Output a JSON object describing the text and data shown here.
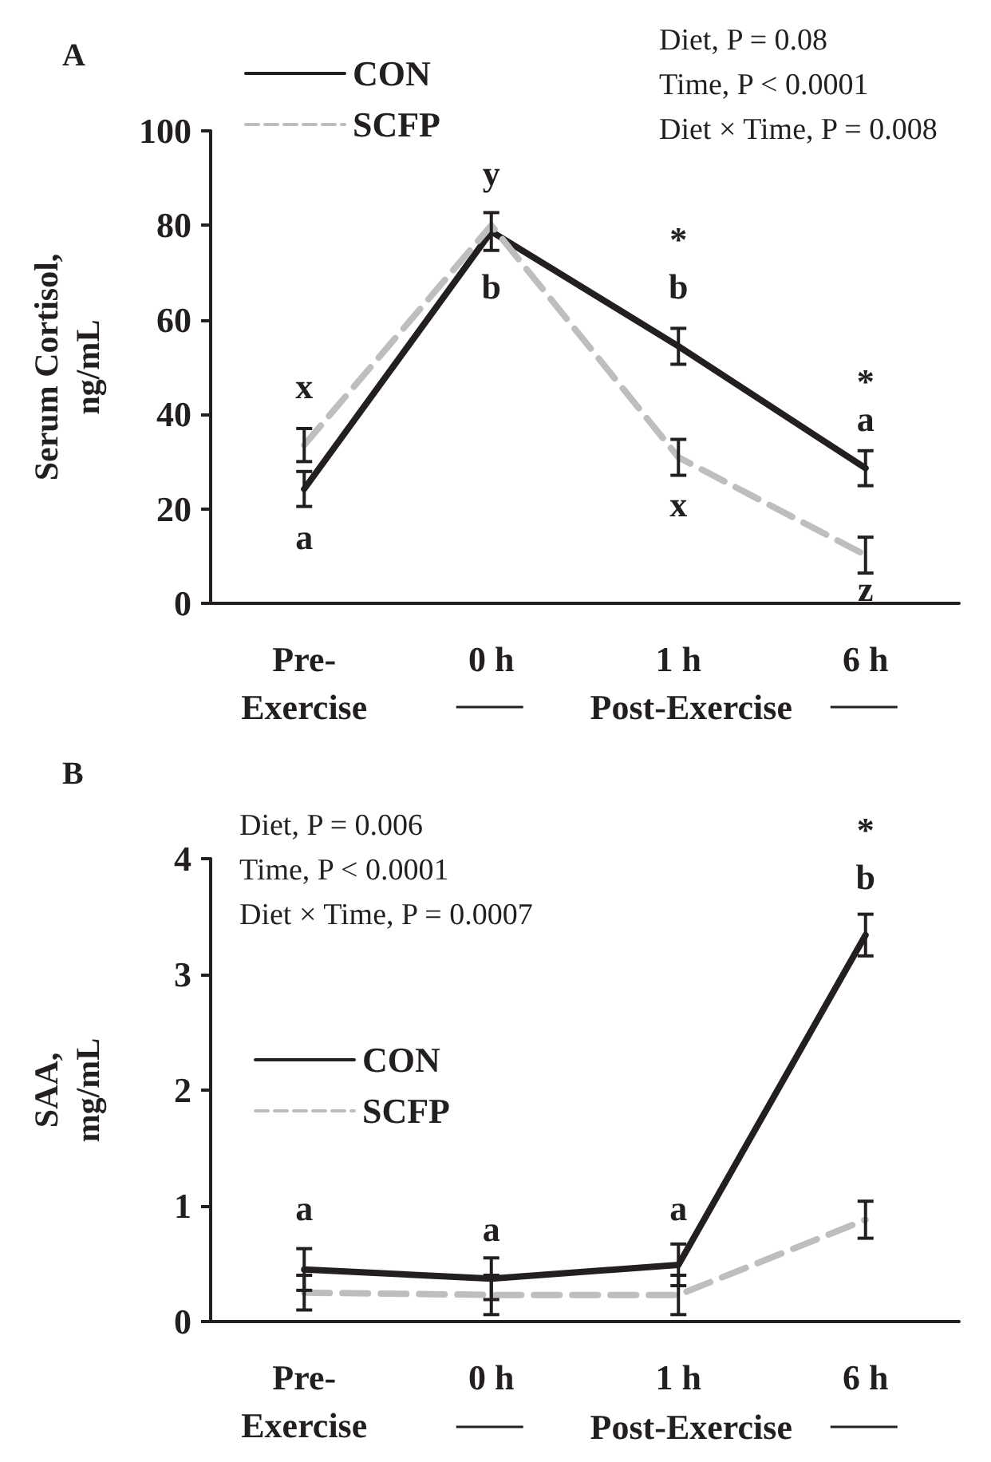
{
  "chart_data": [
    {
      "type": "line",
      "title": "A",
      "ylabel": "Serum Cortisol,\nng/mL",
      "xlabel": "Post-Exercise",
      "categories": [
        "Pre-\nExercise",
        "0 h",
        "1 h",
        "6 h"
      ],
      "series": [
        {
          "name": "CON",
          "color": "#231f20",
          "line_style": "solid",
          "values": [
            24.2,
            78.7,
            54.4,
            28.6
          ],
          "errors": [
            3.7,
            4,
            3.8,
            3.7
          ]
        },
        {
          "name": "SCFP",
          "color": "#bcbec0",
          "line_style": "dashed",
          "values": [
            33.5,
            80,
            30.9,
            10.2
          ],
          "errors": [
            3.5,
            null,
            3.8,
            3.8
          ]
        }
      ],
      "ylim": [
        0,
        100
      ],
      "yticks": [
        0,
        20,
        40,
        60,
        80,
        100
      ],
      "grid": false,
      "legend": "top left",
      "marker": "none",
      "annotations": [
        "Diet, P = 0.08",
        "Time, P < 0.0001",
        "Diet × Time, P = 0.008",
        "x",
        "a",
        "y",
        "b",
        "*",
        "b",
        "x",
        "*",
        "a",
        "z"
      ]
    },
    {
      "type": "line",
      "title": "B",
      "ylabel": "SAA,\nmg/mL",
      "xlabel": "Post-Exercise",
      "categories": [
        "Pre-\nExercise",
        "0 h",
        "1 h",
        "6 h"
      ],
      "series": [
        {
          "name": "CON",
          "color": "#231f20",
          "line_style": "solid",
          "values": [
            0.45,
            0.37,
            0.49,
            3.34
          ],
          "errors": [
            0.18,
            0.18,
            0.18,
            0.18
          ]
        },
        {
          "name": "SCFP",
          "color": "#bcbec0",
          "line_style": "dashed",
          "values": [
            0.25,
            0.23,
            0.23,
            0.88
          ],
          "errors": [
            0.15,
            0.17,
            0.17,
            0.16
          ]
        }
      ],
      "ylim": [
        0,
        4
      ],
      "yticks": [
        0,
        1,
        2,
        3,
        4
      ],
      "grid": false,
      "legend": "left",
      "marker": "none",
      "annotations": [
        "Diet, P = 0.006",
        "Time, P < 0.0001",
        "Diet × Time, P = 0.0007",
        "a",
        "a",
        "a",
        "b",
        "*"
      ]
    }
  ]
}
